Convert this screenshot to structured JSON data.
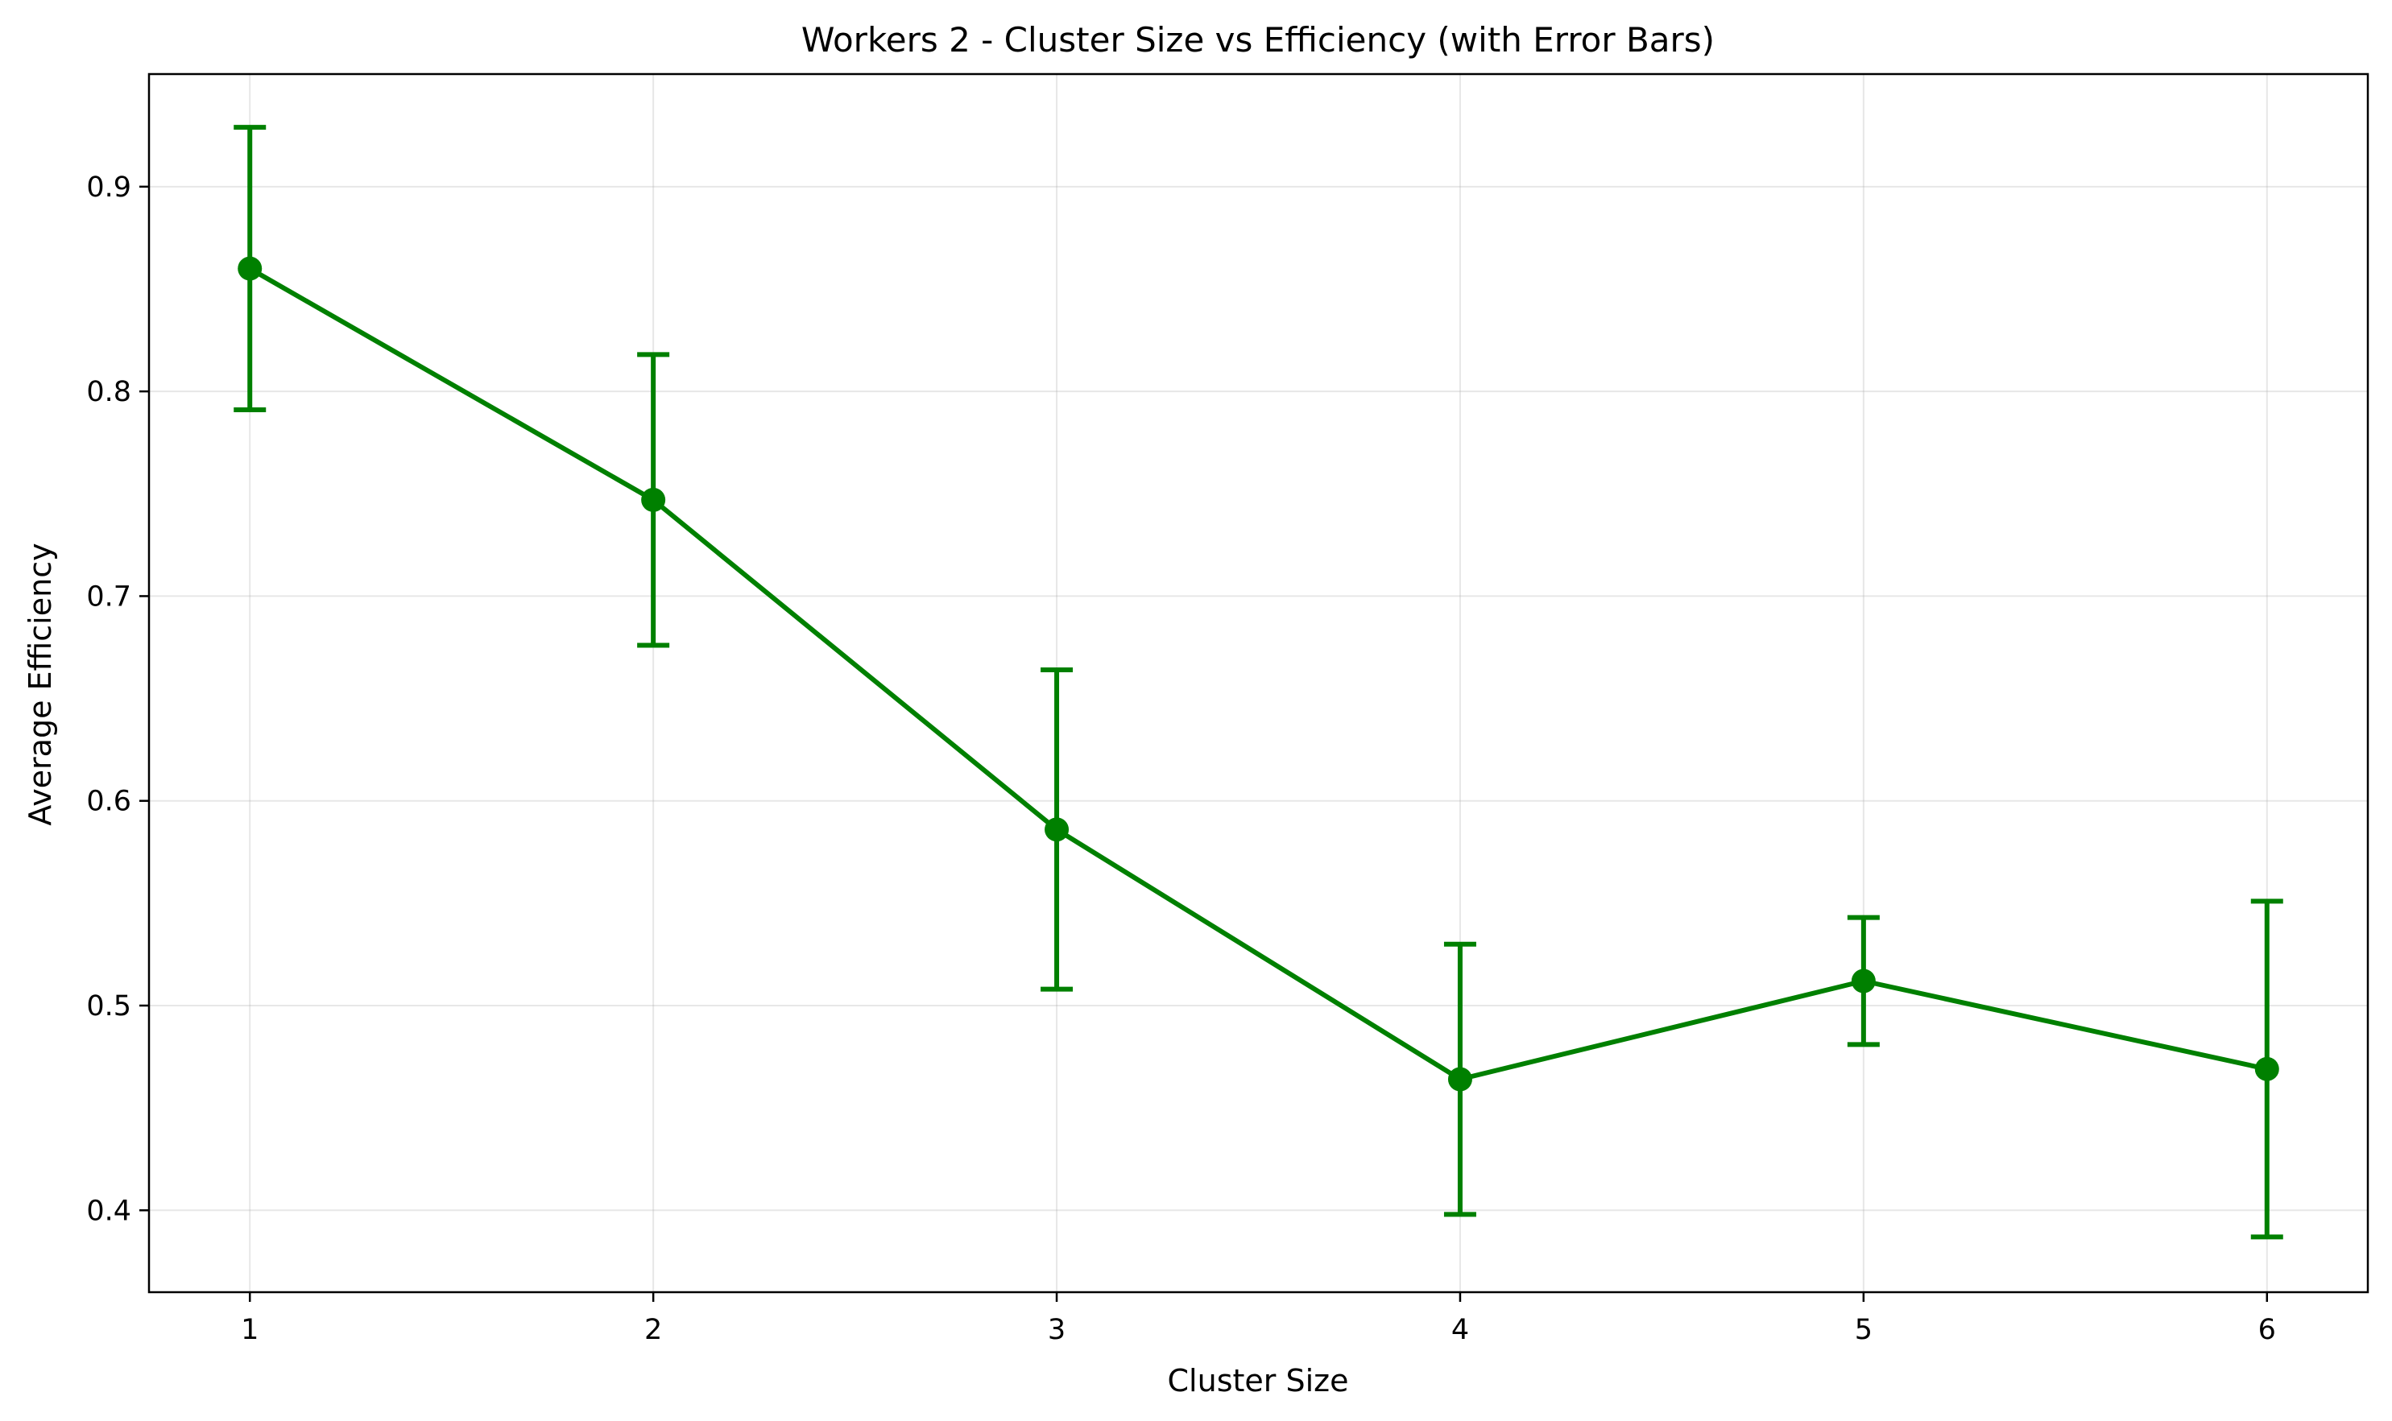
{
  "chart_data": {
    "type": "line",
    "title": "Workers 2 - Cluster Size vs Efficiency (with Error Bars)",
    "xlabel": "Cluster Size",
    "ylabel": "Average Efficiency",
    "xlim": [
      0.75,
      6.25
    ],
    "ylim": [
      0.36,
      0.955
    ],
    "xticks": [
      1,
      2,
      3,
      4,
      5,
      6
    ],
    "yticks": [
      0.4,
      0.5,
      0.6,
      0.7,
      0.8,
      0.9
    ],
    "grid": true,
    "color": "#008000",
    "x": [
      1,
      2,
      3,
      4,
      5,
      6
    ],
    "series": [
      {
        "values": [
          0.86,
          0.747,
          0.586,
          0.464,
          0.512,
          0.469
        ],
        "error": [
          0.069,
          0.071,
          0.078,
          0.066,
          0.031,
          0.082
        ]
      }
    ]
  }
}
